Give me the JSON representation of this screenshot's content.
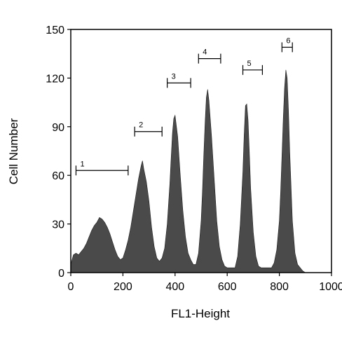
{
  "chart_data": {
    "type": "area",
    "xlabel": "FL1-Height",
    "ylabel": "Cell Number",
    "xlim": [
      0,
      1000
    ],
    "ylim": [
      0,
      150
    ],
    "xticks": [
      0,
      200,
      400,
      600,
      800,
      1000
    ],
    "yticks": [
      0,
      30,
      60,
      90,
      120,
      150
    ],
    "grid": false,
    "fill_color": "#4a4a4a",
    "series": [
      {
        "x": [
          0,
          10,
          20,
          30,
          40,
          50,
          60,
          70,
          80,
          90,
          100,
          110,
          120,
          130,
          140,
          150,
          160,
          170,
          180,
          190,
          200,
          210,
          220,
          230,
          240,
          250,
          260,
          270,
          275,
          280,
          285,
          290,
          300,
          310,
          320,
          330,
          340,
          350,
          360,
          370,
          380,
          385,
          390,
          395,
          400,
          410,
          420,
          430,
          440,
          450,
          460,
          470,
          480,
          490,
          500,
          505,
          510,
          515,
          520,
          525,
          530,
          540,
          550,
          560,
          570,
          580,
          590,
          600,
          610,
          620,
          630,
          640,
          650,
          660,
          665,
          670,
          675,
          680,
          685,
          690,
          700,
          710,
          720,
          730,
          740,
          750,
          760,
          770,
          780,
          790,
          800,
          805,
          810,
          815,
          820,
          825,
          830,
          835,
          840,
          850,
          860,
          870,
          880,
          890,
          900
        ],
        "y": [
          5,
          11,
          12,
          11,
          13,
          15,
          18,
          22,
          26,
          29,
          31,
          34,
          33,
          31,
          28,
          24,
          19,
          14,
          10,
          8,
          9,
          14,
          20,
          28,
          38,
          48,
          58,
          66,
          69,
          64,
          60,
          56,
          44,
          28,
          16,
          9,
          7,
          9,
          15,
          30,
          55,
          71,
          86,
          95,
          97,
          84,
          60,
          38,
          22,
          12,
          8,
          5,
          5,
          12,
          32,
          50,
          72,
          92,
          108,
          113,
          106,
          84,
          58,
          32,
          16,
          8,
          4,
          3,
          3,
          3,
          3,
          10,
          30,
          62,
          85,
          103,
          104,
          94,
          74,
          52,
          25,
          10,
          4,
          3,
          3,
          3,
          3,
          3,
          6,
          14,
          32,
          50,
          72,
          95,
          114,
          125,
          120,
          100,
          74,
          32,
          12,
          5,
          3,
          1,
          0
        ]
      }
    ],
    "annotations": [
      {
        "label": "1",
        "x_start": 20,
        "x_end": 220,
        "y": 63
      },
      {
        "label": "2",
        "x_start": 245,
        "x_end": 350,
        "y": 87
      },
      {
        "label": "3",
        "x_start": 370,
        "x_end": 460,
        "y": 117
      },
      {
        "label": "4",
        "x_start": 490,
        "x_end": 575,
        "y": 132
      },
      {
        "label": "5",
        "x_start": 660,
        "x_end": 735,
        "y": 125
      },
      {
        "label": "6",
        "x_start": 810,
        "x_end": 850,
        "y": 139
      }
    ]
  }
}
